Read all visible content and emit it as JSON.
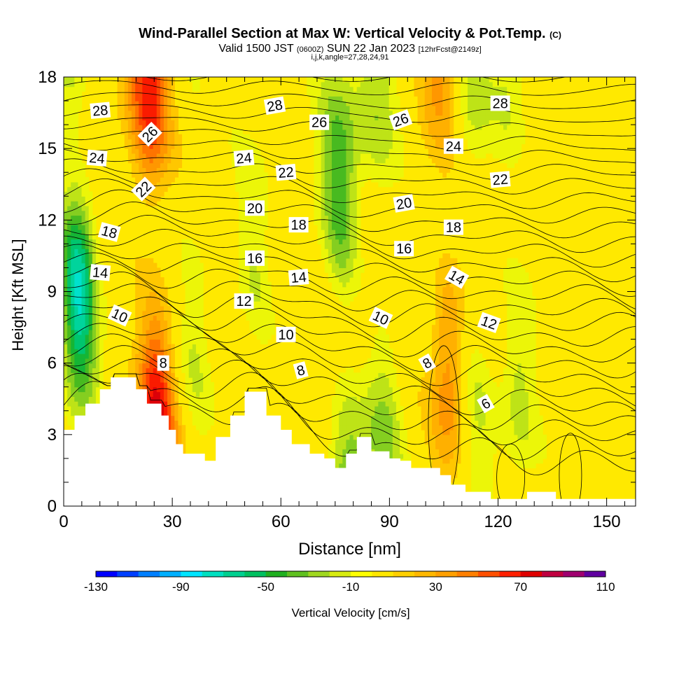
{
  "title": {
    "main": "Wind-Parallel Section at Max W: Vertical Velocity & Pot.Temp.",
    "copyright": "(C)",
    "valid": "Valid 1500 JST",
    "utc": "(0600Z)",
    "date": "SUN 22 Jan 2023",
    "forecast": "[12hrFcst@2149z]",
    "grid": "i,j,k,angle=27,28,24,91"
  },
  "chart_data": {
    "type": "heatmap",
    "xlabel": "Distance [nm]",
    "ylabel": "Height [Kft MSL]",
    "xlim": [
      0,
      158
    ],
    "ylim": [
      0,
      18
    ],
    "xticks": [
      0,
      30,
      60,
      90,
      120,
      150
    ],
    "yticks": [
      0,
      3,
      6,
      9,
      12,
      15,
      18
    ],
    "grid": false,
    "colorbar": {
      "label": "Vertical Velocity [cm/s]",
      "placement": "bottom",
      "range": [
        -130,
        110
      ],
      "step": 10,
      "tick_labels": [
        "-130",
        "-90",
        "-50",
        "-10",
        "30",
        "70",
        "110"
      ],
      "colors": [
        "#0000ff",
        "#0040ff",
        "#0080ff",
        "#00b0ff",
        "#00e5ff",
        "#00e0c0",
        "#00d090",
        "#00c060",
        "#20b020",
        "#60c020",
        "#a0d820",
        "#d8ec10",
        "#ffff00",
        "#ffe800",
        "#ffd000",
        "#ffb800",
        "#ffa000",
        "#ff8000",
        "#ff5000",
        "#ff2000",
        "#e00000",
        "#c00040",
        "#a00070",
        "#6000a0"
      ]
    },
    "velocity_bands": [
      {
        "x": 4,
        "value": -80
      },
      {
        "x": 25,
        "value": 70
      },
      {
        "x": 36,
        "value": -20
      },
      {
        "x": 53,
        "value": -20
      },
      {
        "x": 77,
        "value": -50
      },
      {
        "x": 88,
        "value": -30
      },
      {
        "x": 106,
        "value": 40
      },
      {
        "x": 113,
        "value": -25
      },
      {
        "x": 125,
        "value": -25
      }
    ],
    "terrain": {
      "x": [
        0,
        3,
        3,
        6,
        6,
        10,
        10,
        13,
        13,
        20,
        20,
        23,
        23,
        27,
        27,
        29,
        29,
        31,
        31,
        33,
        33,
        39,
        39,
        42,
        42,
        46,
        46,
        50,
        50,
        56,
        56,
        60,
        60,
        63,
        63,
        68,
        68,
        72,
        72,
        75,
        75,
        78,
        78,
        81,
        81,
        85,
        85,
        90,
        90,
        93,
        93,
        96,
        96,
        104,
        104,
        107,
        107,
        111,
        111,
        118,
        118,
        128,
        128,
        136,
        136,
        158
      ],
      "y": [
        3.2,
        3.2,
        3.8,
        3.8,
        4.3,
        4.3,
        4.9,
        4.9,
        5.4,
        5.4,
        4.9,
        4.9,
        4.3,
        4.3,
        3.8,
        3.8,
        3.2,
        3.2,
        2.6,
        2.6,
        2.2,
        2.2,
        1.9,
        1.9,
        2.9,
        2.9,
        3.8,
        3.8,
        4.8,
        4.8,
        3.8,
        3.8,
        3.2,
        3.2,
        2.6,
        2.6,
        2.2,
        2.2,
        2.0,
        2.0,
        1.6,
        1.6,
        2.2,
        2.2,
        2.9,
        2.9,
        2.3,
        2.3,
        2.0,
        2.0,
        1.9,
        1.9,
        1.6,
        1.6,
        1.3,
        1.3,
        0.9,
        0.9,
        0.6,
        0.6,
        0.3,
        0.3,
        0.6,
        0.6,
        0.3,
        0.3
      ]
    },
    "theta_contours": {
      "label": "Pot.Temp.",
      "levels": [
        6,
        8,
        10,
        12,
        14,
        16,
        18,
        20,
        22,
        24,
        26,
        28
      ],
      "labels": [
        {
          "text": "28",
          "x": 10.1,
          "y": 16.6,
          "angle": -5
        },
        {
          "text": "26",
          "x": 23.8,
          "y": 15.6,
          "angle": -45
        },
        {
          "text": "24",
          "x": 9.2,
          "y": 14.6,
          "angle": 5
        },
        {
          "text": "22",
          "x": 22.0,
          "y": 13.3,
          "angle": -45
        },
        {
          "text": "18",
          "x": 12.6,
          "y": 11.5,
          "angle": 15
        },
        {
          "text": "14",
          "x": 10.1,
          "y": 9.8,
          "angle": 5
        },
        {
          "text": "10",
          "x": 15.5,
          "y": 8.0,
          "angle": 25
        },
        {
          "text": "8",
          "x": 27.5,
          "y": 6.0,
          "angle": 0
        },
        {
          "text": "28",
          "x": 58.3,
          "y": 16.8,
          "angle": -10
        },
        {
          "text": "26",
          "x": 70.6,
          "y": 16.1,
          "angle": 0
        },
        {
          "text": "24",
          "x": 49.8,
          "y": 14.6,
          "angle": -5
        },
        {
          "text": "22",
          "x": 61.4,
          "y": 14.0,
          "angle": -5
        },
        {
          "text": "20",
          "x": 52.8,
          "y": 12.5,
          "angle": 0
        },
        {
          "text": "18",
          "x": 64.9,
          "y": 11.8,
          "angle": 0
        },
        {
          "text": "16",
          "x": 52.8,
          "y": 10.4,
          "angle": 0
        },
        {
          "text": "14",
          "x": 64.9,
          "y": 9.6,
          "angle": -5
        },
        {
          "text": "12",
          "x": 49.8,
          "y": 8.6,
          "angle": 0
        },
        {
          "text": "10",
          "x": 61.4,
          "y": 7.2,
          "angle": 0
        },
        {
          "text": "8",
          "x": 65.5,
          "y": 5.7,
          "angle": -15
        },
        {
          "text": "26",
          "x": 93.1,
          "y": 16.2,
          "angle": -20
        },
        {
          "text": "20",
          "x": 94.0,
          "y": 12.7,
          "angle": -10
        },
        {
          "text": "16",
          "x": 94.0,
          "y": 10.8,
          "angle": 0
        },
        {
          "text": "10",
          "x": 87.6,
          "y": 7.9,
          "angle": 25
        },
        {
          "text": "8",
          "x": 100.4,
          "y": 6.0,
          "angle": -30
        },
        {
          "text": "28",
          "x": 120.6,
          "y": 16.9,
          "angle": 0
        },
        {
          "text": "24",
          "x": 107.7,
          "y": 15.1,
          "angle": 0
        },
        {
          "text": "22",
          "x": 120.6,
          "y": 13.7,
          "angle": -5
        },
        {
          "text": "18",
          "x": 107.7,
          "y": 11.7,
          "angle": 0
        },
        {
          "text": "14",
          "x": 108.6,
          "y": 9.6,
          "angle": 30
        },
        {
          "text": "12",
          "x": 117.5,
          "y": 7.7,
          "angle": 20
        },
        {
          "text": "6",
          "x": 116.6,
          "y": 4.3,
          "angle": -30
        }
      ]
    }
  }
}
